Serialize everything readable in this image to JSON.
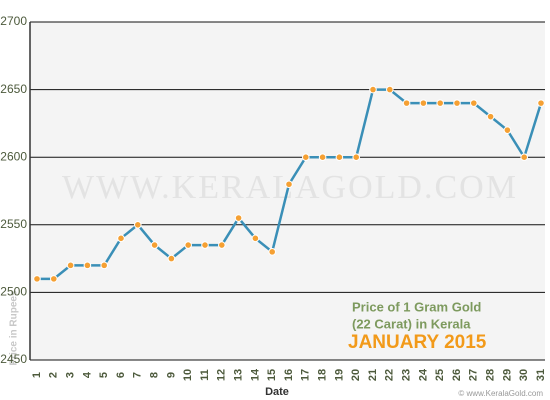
{
  "chart_data": {
    "type": "line",
    "categories": [
      "1",
      "2",
      "3",
      "4",
      "5",
      "6",
      "7",
      "8",
      "9",
      "10",
      "11",
      "12",
      "13",
      "14",
      "15",
      "16",
      "17",
      "18",
      "19",
      "20",
      "21",
      "22",
      "23",
      "24",
      "25",
      "26",
      "27",
      "28",
      "29",
      "30",
      "31"
    ],
    "values": [
      2510,
      2510,
      2520,
      2520,
      2520,
      2540,
      2550,
      2535,
      2525,
      2535,
      2535,
      2535,
      2555,
      2540,
      2530,
      2580,
      2600,
      2600,
      2600,
      2600,
      2650,
      2650,
      2640,
      2640,
      2640,
      2640,
      2640,
      2630,
      2620,
      2600,
      2640
    ],
    "color": "#3a8fb7",
    "marker_color": "#f5a033",
    "ylim": [
      2450,
      2700
    ],
    "yticks": [
      2450,
      2500,
      2550,
      2600,
      2650,
      2700
    ],
    "grid": true,
    "xlabel": "Date",
    "ylabel": "Price in Rupees",
    "annotations": [
      "Price of 1 Gram Gold",
      "(22 Carat) in Kerala",
      "JANUARY 2015"
    ],
    "watermark": "WWW.KERALAGOLD.COM",
    "credit": "© www.KeralaGold.com"
  }
}
